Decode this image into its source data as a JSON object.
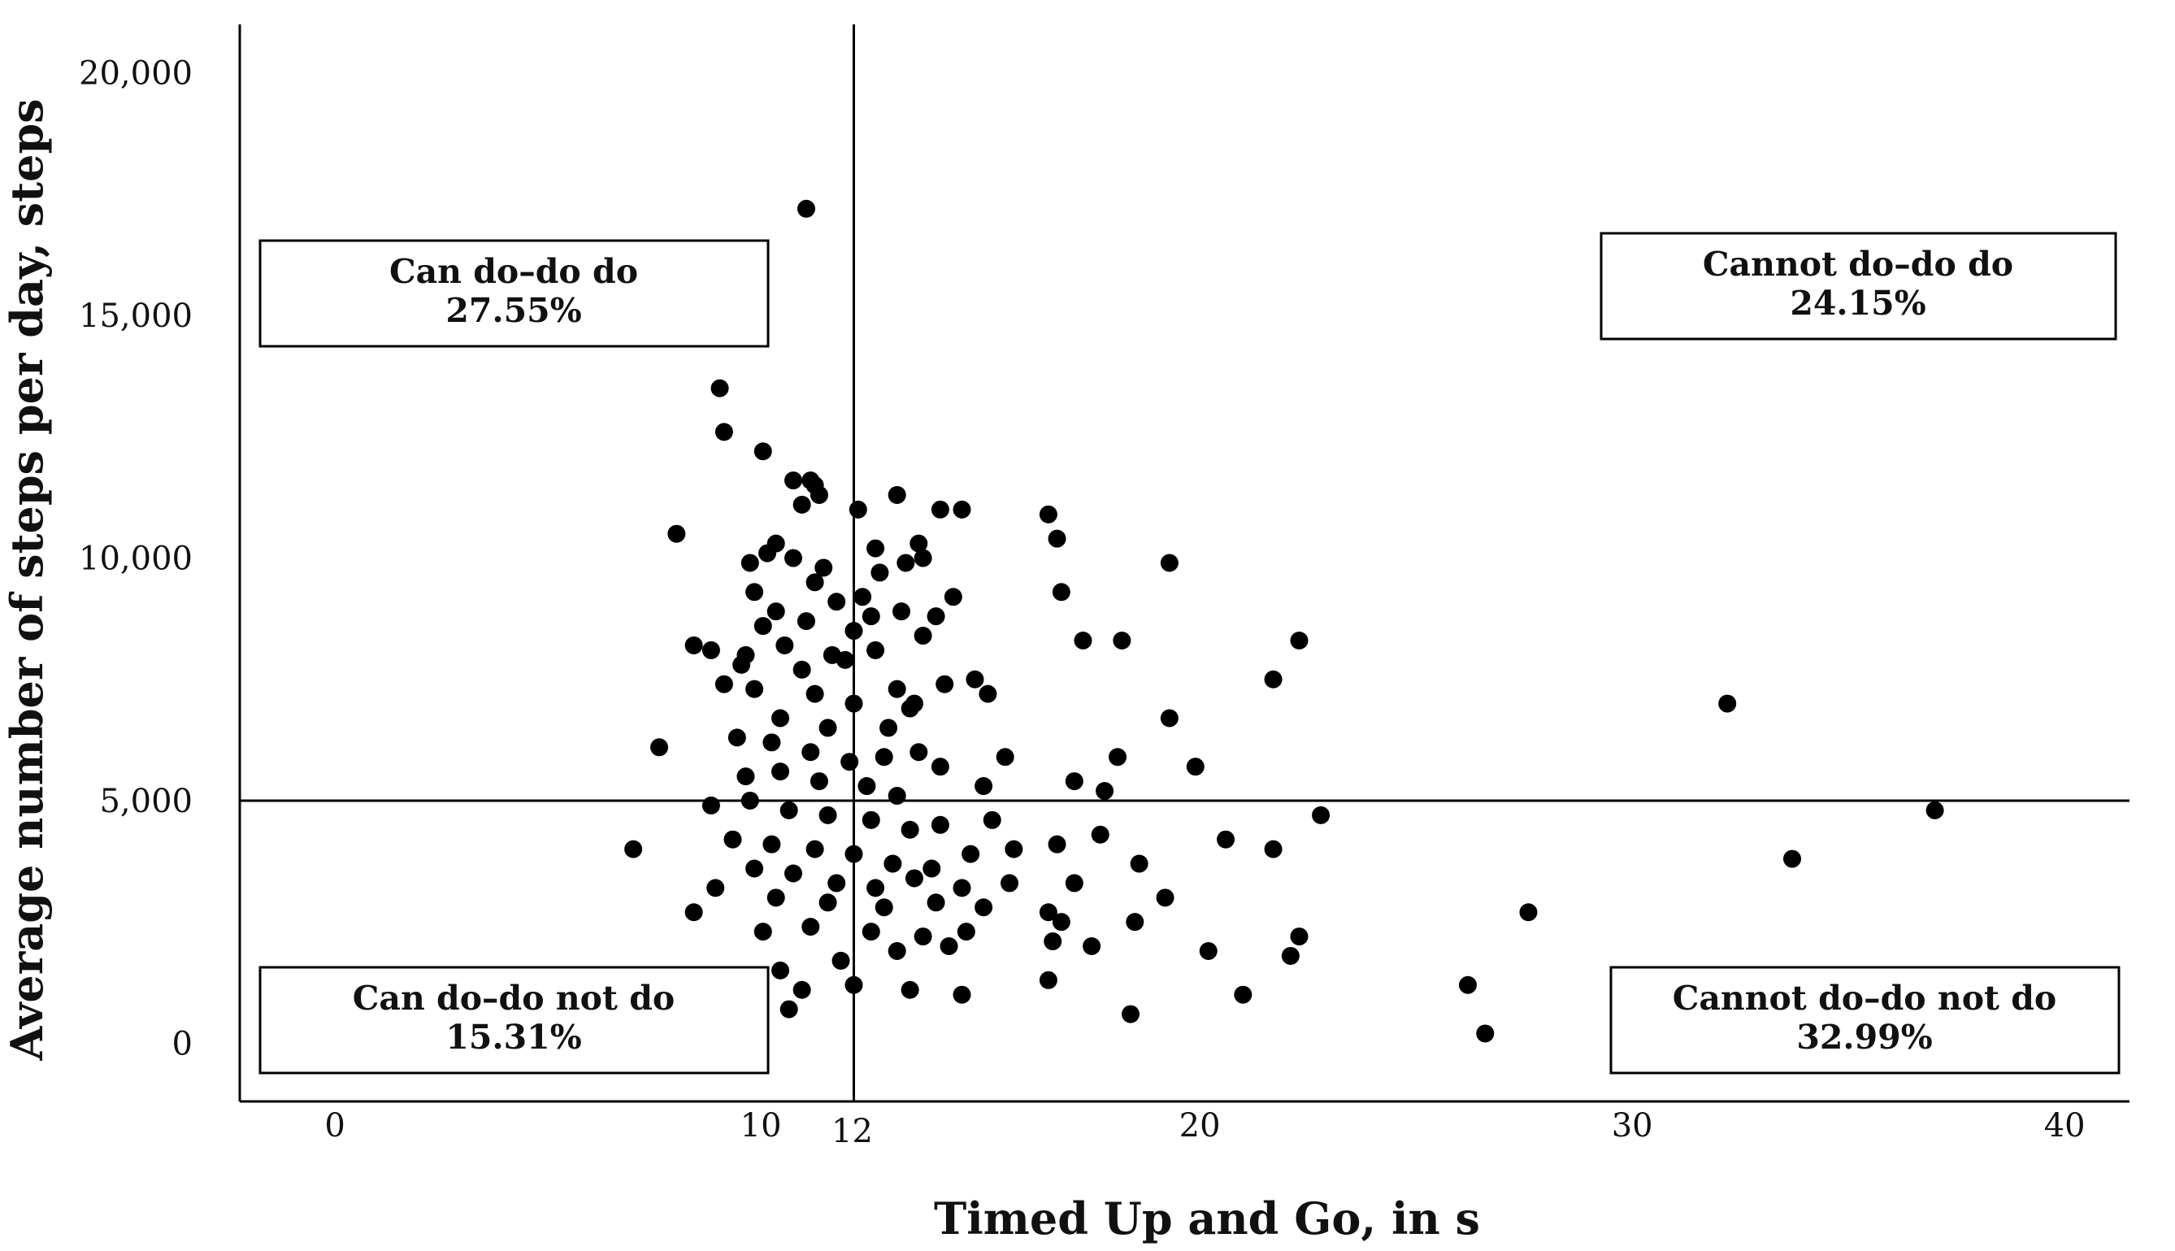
{
  "chart_data": {
    "type": "scatter",
    "xlabel": "Timed Up and Go, in s",
    "ylabel": "Average number of steps per day, steps",
    "xlim": [
      -2.2,
      41.5
    ],
    "ylim": [
      -1200,
      21000
    ],
    "xticks": [
      {
        "v": 0,
        "label": "0"
      },
      {
        "v": 10,
        "label": "10"
      },
      {
        "v": 12,
        "label": "12"
      },
      {
        "v": 20,
        "label": "20"
      },
      {
        "v": 30,
        "label": "30"
      },
      {
        "v": 40,
        "label": "40"
      }
    ],
    "yticks": [
      {
        "v": 0,
        "label": "0"
      },
      {
        "v": 5000,
        "label": "5,000"
      },
      {
        "v": 10000,
        "label": "10,000"
      },
      {
        "v": 15000,
        "label": "15,000"
      },
      {
        "v": 20000,
        "label": "20,000"
      }
    ],
    "reference_lines": {
      "x": 12,
      "y": 5000
    },
    "quadrants": [
      {
        "id": "can-do-do-do",
        "title": "Can do–do do",
        "value": "27.55%",
        "position": "top-left"
      },
      {
        "id": "cannot-do-do-do",
        "title": "Cannot do–do do",
        "value": "24.15%",
        "position": "top-right"
      },
      {
        "id": "can-do-do-not-do",
        "title": "Can do–do not do",
        "value": "15.31%",
        "position": "bottom-left"
      },
      {
        "id": "cannot-do-do-not-do",
        "title": "Cannot do–do not do",
        "value": "32.99%",
        "position": "bottom-right"
      }
    ],
    "points": [
      [
        10.9,
        17200
      ],
      [
        8.9,
        13500
      ],
      [
        9.0,
        12600
      ],
      [
        9.9,
        12200
      ],
      [
        7.9,
        10500
      ],
      [
        10.6,
        11600
      ],
      [
        11.0,
        11600
      ],
      [
        11.1,
        11500
      ],
      [
        11.2,
        11300
      ],
      [
        10.8,
        11100
      ],
      [
        12.1,
        11000
      ],
      [
        13.0,
        11300
      ],
      [
        14.0,
        11000
      ],
      [
        14.5,
        11000
      ],
      [
        16.5,
        10900
      ],
      [
        16.7,
        10400
      ],
      [
        12.5,
        10200
      ],
      [
        13.5,
        10300
      ],
      [
        10.2,
        10300
      ],
      [
        9.6,
        9900
      ],
      [
        10.0,
        10100
      ],
      [
        10.6,
        10000
      ],
      [
        11.3,
        9800
      ],
      [
        12.6,
        9700
      ],
      [
        13.2,
        9900
      ],
      [
        13.6,
        10000
      ],
      [
        19.3,
        9900
      ],
      [
        11.1,
        9500
      ],
      [
        9.7,
        9300
      ],
      [
        12.2,
        9200
      ],
      [
        11.6,
        9100
      ],
      [
        14.3,
        9200
      ],
      [
        16.8,
        9300
      ],
      [
        10.2,
        8900
      ],
      [
        10.9,
        8700
      ],
      [
        12.4,
        8800
      ],
      [
        13.1,
        8900
      ],
      [
        13.9,
        8800
      ],
      [
        9.9,
        8600
      ],
      [
        12.0,
        8500
      ],
      [
        13.6,
        8400
      ],
      [
        8.3,
        8200
      ],
      [
        8.7,
        8100
      ],
      [
        9.5,
        8000
      ],
      [
        10.4,
        8200
      ],
      [
        11.5,
        8000
      ],
      [
        12.5,
        8100
      ],
      [
        17.3,
        8300
      ],
      [
        18.2,
        8300
      ],
      [
        22.3,
        8300
      ],
      [
        9.4,
        7800
      ],
      [
        10.8,
        7700
      ],
      [
        11.8,
        7900
      ],
      [
        21.7,
        7500
      ],
      [
        9.0,
        7400
      ],
      [
        9.7,
        7300
      ],
      [
        11.1,
        7200
      ],
      [
        12.0,
        7000
      ],
      [
        13.0,
        7300
      ],
      [
        13.4,
        7000
      ],
      [
        14.1,
        7400
      ],
      [
        14.8,
        7500
      ],
      [
        15.1,
        7200
      ],
      [
        10.3,
        6700
      ],
      [
        11.4,
        6500
      ],
      [
        12.8,
        6500
      ],
      [
        13.3,
        6900
      ],
      [
        19.3,
        6700
      ],
      [
        7.5,
        6100
      ],
      [
        9.3,
        6300
      ],
      [
        10.1,
        6200
      ],
      [
        11.0,
        6000
      ],
      [
        11.9,
        5800
      ],
      [
        12.7,
        5900
      ],
      [
        13.5,
        6000
      ],
      [
        14.0,
        5700
      ],
      [
        15.5,
        5900
      ],
      [
        18.1,
        5900
      ],
      [
        19.9,
        5700
      ],
      [
        9.5,
        5500
      ],
      [
        10.3,
        5600
      ],
      [
        11.2,
        5400
      ],
      [
        12.3,
        5300
      ],
      [
        13.0,
        5100
      ],
      [
        15.0,
        5300
      ],
      [
        17.1,
        5400
      ],
      [
        17.8,
        5200
      ],
      [
        32.2,
        7000
      ],
      [
        8.7,
        4900
      ],
      [
        9.6,
        5000
      ],
      [
        10.5,
        4800
      ],
      [
        11.4,
        4700
      ],
      [
        12.4,
        4600
      ],
      [
        13.3,
        4400
      ],
      [
        14.0,
        4500
      ],
      [
        15.2,
        4600
      ],
      [
        22.8,
        4700
      ],
      [
        37.0,
        4800
      ],
      [
        6.9,
        4000
      ],
      [
        9.2,
        4200
      ],
      [
        10.1,
        4100
      ],
      [
        11.1,
        4000
      ],
      [
        12.0,
        3900
      ],
      [
        12.9,
        3700
      ],
      [
        13.8,
        3600
      ],
      [
        14.7,
        3900
      ],
      [
        15.7,
        4000
      ],
      [
        16.7,
        4100
      ],
      [
        17.7,
        4300
      ],
      [
        20.6,
        4200
      ],
      [
        21.7,
        4000
      ],
      [
        33.7,
        3800
      ],
      [
        9.7,
        3600
      ],
      [
        10.6,
        3500
      ],
      [
        11.6,
        3300
      ],
      [
        12.5,
        3200
      ],
      [
        13.4,
        3400
      ],
      [
        14.5,
        3200
      ],
      [
        15.6,
        3300
      ],
      [
        17.1,
        3300
      ],
      [
        18.6,
        3700
      ],
      [
        8.8,
        3200
      ],
      [
        10.2,
        3000
      ],
      [
        11.4,
        2900
      ],
      [
        12.7,
        2800
      ],
      [
        13.9,
        2900
      ],
      [
        15.0,
        2800
      ],
      [
        16.5,
        2700
      ],
      [
        19.2,
        3000
      ],
      [
        8.3,
        2700
      ],
      [
        9.9,
        2300
      ],
      [
        11.0,
        2400
      ],
      [
        12.4,
        2300
      ],
      [
        13.6,
        2200
      ],
      [
        14.6,
        2300
      ],
      [
        16.8,
        2500
      ],
      [
        18.5,
        2500
      ],
      [
        22.3,
        2200
      ],
      [
        27.6,
        2700
      ],
      [
        10.3,
        1500
      ],
      [
        11.7,
        1700
      ],
      [
        13.0,
        1900
      ],
      [
        14.2,
        2000
      ],
      [
        16.6,
        2100
      ],
      [
        17.5,
        2000
      ],
      [
        20.2,
        1900
      ],
      [
        22.1,
        1800
      ],
      [
        10.8,
        1100
      ],
      [
        12.0,
        1200
      ],
      [
        13.3,
        1100
      ],
      [
        14.5,
        1000
      ],
      [
        16.5,
        1300
      ],
      [
        21.0,
        1000
      ],
      [
        26.2,
        1200
      ],
      [
        10.5,
        700
      ],
      [
        18.4,
        600
      ],
      [
        26.6,
        200
      ]
    ]
  }
}
